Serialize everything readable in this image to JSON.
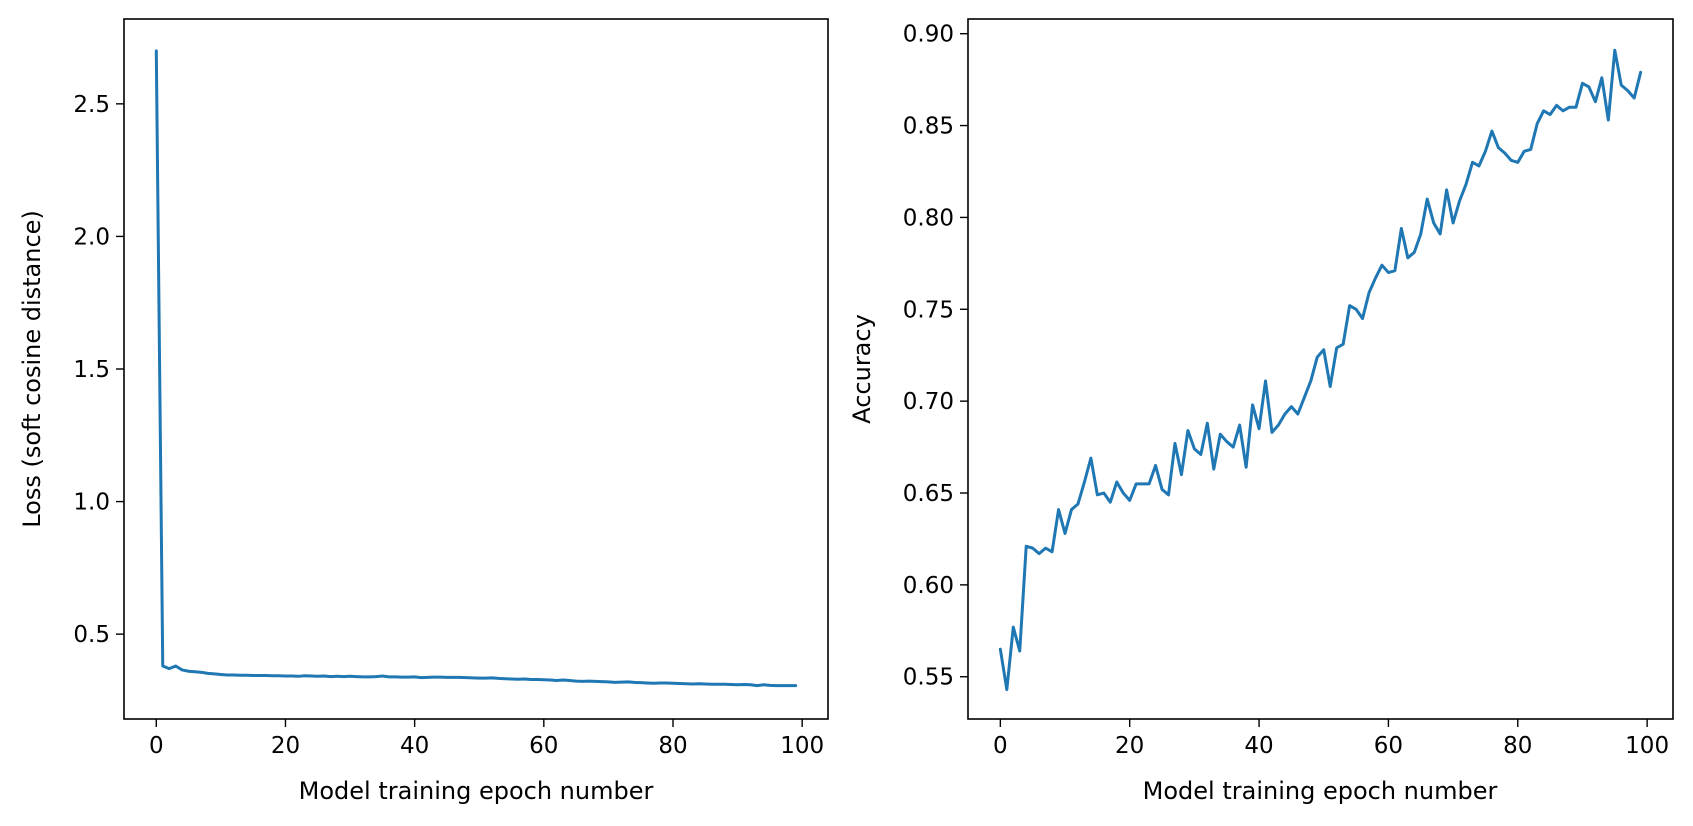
{
  "chart_data": [
    {
      "type": "line",
      "title": "",
      "xlabel": "Model training epoch number",
      "ylabel": "Loss (soft cosine distance)",
      "xlim": [
        -5,
        104
      ],
      "ylim": [
        0.18,
        2.82
      ],
      "xticks": [
        0,
        20,
        40,
        60,
        80,
        100
      ],
      "xtick_labels": [
        "0",
        "20",
        "40",
        "60",
        "80",
        "100"
      ],
      "yticks": [
        0.5,
        1.0,
        1.5,
        2.0,
        2.5
      ],
      "ytick_labels": [
        "0.5",
        "1.0",
        "1.5",
        "2.0",
        "2.5"
      ],
      "grid": false,
      "color": "#1f77b4",
      "series": [
        {
          "x": [
            0,
            1,
            2,
            3,
            4,
            5,
            6,
            7,
            8,
            9,
            10,
            11,
            12,
            13,
            14,
            15,
            16,
            17,
            18,
            19,
            20,
            21,
            22,
            23,
            24,
            25,
            26,
            27,
            28,
            29,
            30,
            31,
            32,
            33,
            34,
            35,
            36,
            37,
            38,
            39,
            40,
            41,
            42,
            43,
            44,
            45,
            46,
            47,
            48,
            49,
            50,
            51,
            52,
            53,
            54,
            55,
            56,
            57,
            58,
            59,
            60,
            61,
            62,
            63,
            64,
            65,
            66,
            67,
            68,
            69,
            70,
            71,
            72,
            73,
            74,
            75,
            76,
            77,
            78,
            79,
            80,
            81,
            82,
            83,
            84,
            85,
            86,
            87,
            88,
            89,
            90,
            91,
            92,
            93,
            94,
            95,
            96,
            97,
            98,
            99
          ],
          "values": [
            2.7,
            0.38,
            0.37,
            0.38,
            0.365,
            0.36,
            0.358,
            0.356,
            0.352,
            0.35,
            0.348,
            0.346,
            0.346,
            0.345,
            0.345,
            0.344,
            0.344,
            0.344,
            0.343,
            0.343,
            0.342,
            0.342,
            0.341,
            0.343,
            0.342,
            0.341,
            0.342,
            0.34,
            0.341,
            0.34,
            0.341,
            0.34,
            0.339,
            0.339,
            0.34,
            0.342,
            0.339,
            0.339,
            0.338,
            0.338,
            0.339,
            0.336,
            0.337,
            0.338,
            0.338,
            0.337,
            0.337,
            0.337,
            0.336,
            0.335,
            0.334,
            0.334,
            0.335,
            0.333,
            0.332,
            0.331,
            0.33,
            0.331,
            0.329,
            0.329,
            0.328,
            0.327,
            0.325,
            0.327,
            0.325,
            0.323,
            0.322,
            0.323,
            0.322,
            0.321,
            0.32,
            0.318,
            0.319,
            0.32,
            0.318,
            0.317,
            0.316,
            0.315,
            0.316,
            0.316,
            0.315,
            0.314,
            0.313,
            0.312,
            0.313,
            0.312,
            0.311,
            0.311,
            0.311,
            0.31,
            0.309,
            0.31,
            0.309,
            0.306,
            0.309,
            0.307,
            0.306,
            0.306,
            0.306,
            0.306
          ]
        }
      ]
    },
    {
      "type": "line",
      "title": "",
      "xlabel": "Model training epoch number",
      "ylabel": "Accuracy",
      "xlim": [
        -5,
        104
      ],
      "ylim": [
        0.527,
        0.908
      ],
      "xticks": [
        0,
        20,
        40,
        60,
        80,
        100
      ],
      "xtick_labels": [
        "0",
        "20",
        "40",
        "60",
        "80",
        "100"
      ],
      "yticks": [
        0.55,
        0.6,
        0.65,
        0.7,
        0.75,
        0.8,
        0.85,
        0.9
      ],
      "ytick_labels": [
        "0.55",
        "0.60",
        "0.65",
        "0.70",
        "0.75",
        "0.80",
        "0.85",
        "0.90"
      ],
      "grid": false,
      "color": "#1f77b4",
      "series": [
        {
          "x": [
            0,
            1,
            2,
            3,
            4,
            5,
            6,
            7,
            8,
            9,
            10,
            11,
            12,
            13,
            14,
            15,
            16,
            17,
            18,
            19,
            20,
            21,
            22,
            23,
            24,
            25,
            26,
            27,
            28,
            29,
            30,
            31,
            32,
            33,
            34,
            35,
            36,
            37,
            38,
            39,
            40,
            41,
            42,
            43,
            44,
            45,
            46,
            47,
            48,
            49,
            50,
            51,
            52,
            53,
            54,
            55,
            56,
            57,
            58,
            59,
            60,
            61,
            62,
            63,
            64,
            65,
            66,
            67,
            68,
            69,
            70,
            71,
            72,
            73,
            74,
            75,
            76,
            77,
            78,
            79,
            80,
            81,
            82,
            83,
            84,
            85,
            86,
            87,
            88,
            89,
            90,
            91,
            92,
            93,
            94,
            95,
            96,
            97,
            98,
            99
          ],
          "values": [
            0.565,
            0.543,
            0.577,
            0.564,
            0.621,
            0.62,
            0.617,
            0.62,
            0.618,
            0.641,
            0.628,
            0.641,
            0.644,
            0.656,
            0.669,
            0.649,
            0.65,
            0.645,
            0.656,
            0.65,
            0.646,
            0.655,
            0.655,
            0.655,
            0.665,
            0.652,
            0.649,
            0.677,
            0.66,
            0.684,
            0.674,
            0.671,
            0.688,
            0.663,
            0.682,
            0.678,
            0.675,
            0.687,
            0.664,
            0.698,
            0.685,
            0.711,
            0.683,
            0.687,
            0.693,
            0.697,
            0.693,
            0.702,
            0.711,
            0.724,
            0.728,
            0.708,
            0.729,
            0.731,
            0.752,
            0.75,
            0.745,
            0.759,
            0.767,
            0.774,
            0.77,
            0.771,
            0.794,
            0.778,
            0.781,
            0.791,
            0.81,
            0.797,
            0.791,
            0.815,
            0.797,
            0.809,
            0.818,
            0.83,
            0.828,
            0.836,
            0.847,
            0.838,
            0.835,
            0.831,
            0.83,
            0.836,
            0.837,
            0.851,
            0.858,
            0.856,
            0.861,
            0.858,
            0.86,
            0.86,
            0.873,
            0.871,
            0.863,
            0.876,
            0.853,
            0.891,
            0.872,
            0.869,
            0.865,
            0.879
          ]
        }
      ]
    }
  ]
}
